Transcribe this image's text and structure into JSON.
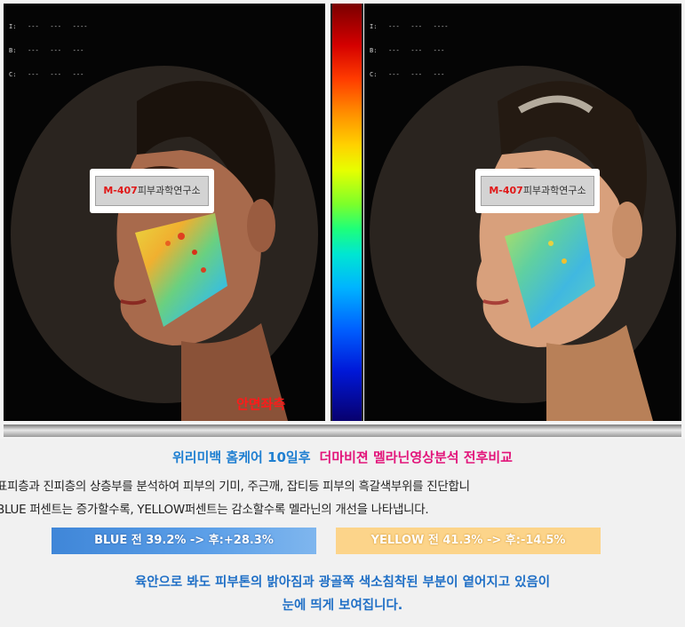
{
  "left_panel": {
    "header_lines": [
      "I:   ---   ---   ----",
      "B:   ---   ---   ---",
      "C:   ---   ---   ---"
    ],
    "watermark_red": "M-407",
    "watermark_text": "피부과학연구소",
    "caption": "안면좌측"
  },
  "right_panel": {
    "header_lines": [
      "I:   ---   ---   ----",
      "B:   ---   ---   ---",
      "C:   ---   ---   ---"
    ],
    "watermark_red": "M-407",
    "watermark_text": "피부과학연구소"
  },
  "headline": {
    "blue": "위리미백 홈케어 10일후",
    "pink": "더마비젼 멜라닌영상분석 전후비교"
  },
  "description": {
    "line1": "표피층과 진피층의 상층부를 분석하여 피부의 기미, 주근깨, 잡티등 피부의 흑갈색부위를 진단합니",
    "line2": "BLUE 퍼센트는 증가할수록, YELLOW퍼센트는 감소할수록 멜라닌의 개선을 나타냅니다."
  },
  "blue_result": "BLUE 전 39.2% -> 후:+28.3%",
  "yellow_result": "YELLOW 전 41.3% -> 후:-14.5%",
  "bottom": {
    "line1": "육안으로 봐도 피부톤의 밝아짐과 광골쪽 색소침착된 부분이 옅어지고 있음이",
    "line2": "눈에 띄게 보여집니다."
  },
  "colors": {
    "headline_blue": "#1f7fd1",
    "headline_pink": "#e2147a",
    "caption_red": "#ff1a1a",
    "blue_pill": "#4a8fdc",
    "yellow_pill": "#fcd48a"
  }
}
